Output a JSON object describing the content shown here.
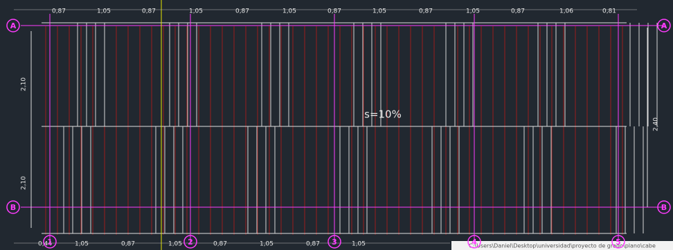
{
  "top_dimensions": [
    "0,87",
    "1,05",
    "0,87",
    "1,05",
    "0,87",
    "1,05",
    "0,87",
    "1,05",
    "0,87",
    "1,05",
    "0,87",
    "1,06",
    "0,81"
  ],
  "bottom_dimensions": [
    "0,44",
    "1,05",
    "0,87",
    "1,05",
    "0,87",
    "1,05",
    "0,87",
    "1,05"
  ],
  "left_dimensions": [
    "2,10",
    "2,10"
  ],
  "right_dimension": "2,40",
  "slope_label": "s=10%",
  "grid_bubbles": {
    "left": [
      "A",
      "B"
    ],
    "right": [
      "A",
      "B"
    ],
    "bottom": [
      "1",
      "2",
      "3",
      "4",
      "5"
    ]
  },
  "status_path": "C:\\Users\\Daniel\\Desktop\\universidad\\proyecto de grado\\plano\\cabe"
}
